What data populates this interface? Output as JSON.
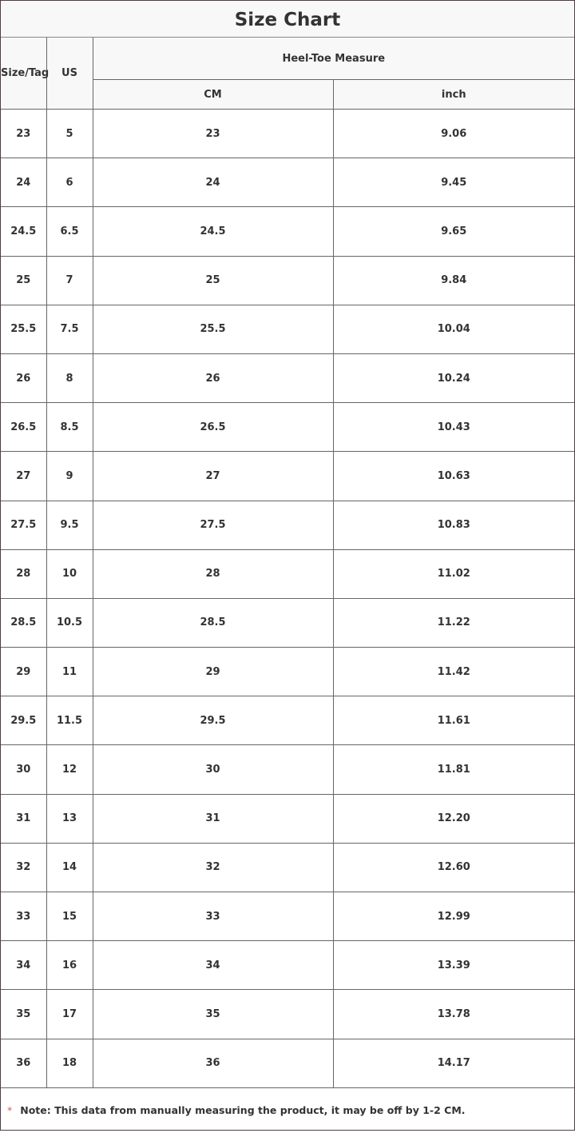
{
  "title": "Size Chart",
  "headers": {
    "size_tag": "Size/Tag",
    "us": "US",
    "group": "Heel-Toe Measure",
    "cm": "CM",
    "inch": "inch"
  },
  "rows": [
    [
      "23",
      "5",
      "23",
      "9.06"
    ],
    [
      "24",
      "6",
      "24",
      "9.45"
    ],
    [
      "24.5",
      "6.5",
      "24.5",
      "9.65"
    ],
    [
      "25",
      "7",
      "25",
      "9.84"
    ],
    [
      "25.5",
      "7.5",
      "25.5",
      "10.04"
    ],
    [
      "26",
      "8",
      "26",
      "10.24"
    ],
    [
      "26.5",
      "8.5",
      "26.5",
      "10.43"
    ],
    [
      "27",
      "9",
      "27",
      "10.63"
    ],
    [
      "27.5",
      "9.5",
      "27.5",
      "10.83"
    ],
    [
      "28",
      "10",
      "28",
      "11.02"
    ],
    [
      "28.5",
      "10.5",
      "28.5",
      "11.22"
    ],
    [
      "29",
      "11",
      "29",
      "11.42"
    ],
    [
      "29.5",
      "11.5",
      "29.5",
      "11.61"
    ],
    [
      "30",
      "12",
      "30",
      "11.81"
    ],
    [
      "31",
      "13",
      "31",
      "12.20"
    ],
    [
      "32",
      "14",
      "32",
      "12.60"
    ],
    [
      "33",
      "15",
      "33",
      "12.99"
    ],
    [
      "34",
      "16",
      "34",
      "13.39"
    ],
    [
      "35",
      "17",
      "35",
      "13.78"
    ],
    [
      "36",
      "18",
      "36",
      "14.17"
    ]
  ],
  "note": {
    "marker": "*",
    "text": "Note: This data from manually measuring the product, it may be off by 1-2 CM.",
    "marker_color": "#e05555"
  }
}
